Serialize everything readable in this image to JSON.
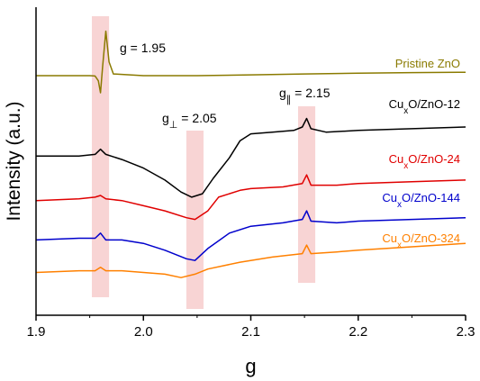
{
  "chart_data": {
    "type": "line",
    "xlabel": "g",
    "ylabel": "Intensity (a.u.)",
    "xlim": [
      1.9,
      2.3
    ],
    "x_ticks": [
      "1.9",
      "2.0",
      "2.1",
      "2.2",
      "2.3"
    ],
    "y_ticks_shown": false,
    "legend": "none",
    "highlight_bands": [
      {
        "label": "g = 1.95",
        "center": 1.96,
        "half_width": 0.008
      },
      {
        "label": "g⊥ = 2.05",
        "center": 2.048,
        "half_width": 0.008
      },
      {
        "label": "g∥ = 2.15",
        "center": 2.152,
        "half_width": 0.008
      }
    ],
    "annotations": {
      "g195": "g = 1.95",
      "g_perp_prefix": "g",
      "g_perp_sub": "⊥",
      "g_perp_value": " = 2.05",
      "g_par_prefix": "g",
      "g_par_sub": "∥",
      "g_par_value": " = 2.15"
    },
    "band_color": "#f5c6c6",
    "series": [
      {
        "name": "Pristine ZnO",
        "label_parts": [
          "Pristine ZnO"
        ],
        "color": "#8a7a00",
        "points": [
          [
            1.9,
            1.0
          ],
          [
            1.95,
            1.0
          ],
          [
            1.955,
            0.98
          ],
          [
            1.958,
            0.7
          ],
          [
            1.96,
            0.0
          ],
          [
            1.962,
            1.5
          ],
          [
            1.965,
            3.6
          ],
          [
            1.968,
            1.8
          ],
          [
            1.972,
            1.1
          ],
          [
            2.0,
            1.0
          ],
          [
            2.05,
            1.0
          ],
          [
            2.1,
            1.05
          ],
          [
            2.15,
            1.1
          ],
          [
            2.2,
            1.15
          ],
          [
            2.25,
            1.18
          ],
          [
            2.3,
            1.2
          ]
        ]
      },
      {
        "name": "CuxO/ZnO-12",
        "label_parts": [
          "Cu",
          "x",
          "O/ZnO-12"
        ],
        "color": "#000000",
        "points": [
          [
            1.9,
            -3.7
          ],
          [
            1.94,
            -3.7
          ],
          [
            1.955,
            -3.6
          ],
          [
            1.96,
            -3.3
          ],
          [
            1.965,
            -3.6
          ],
          [
            1.98,
            -3.9
          ],
          [
            2.0,
            -4.4
          ],
          [
            2.02,
            -5.1
          ],
          [
            2.035,
            -5.8
          ],
          [
            2.045,
            -6.1
          ],
          [
            2.055,
            -5.9
          ],
          [
            2.065,
            -5.0
          ],
          [
            2.08,
            -3.8
          ],
          [
            2.09,
            -2.8
          ],
          [
            2.1,
            -2.4
          ],
          [
            2.12,
            -2.3
          ],
          [
            2.14,
            -2.2
          ],
          [
            2.148,
            -2.0
          ],
          [
            2.152,
            -1.5
          ],
          [
            2.156,
            -2.1
          ],
          [
            2.17,
            -2.3
          ],
          [
            2.2,
            -2.2
          ],
          [
            2.25,
            -2.1
          ],
          [
            2.3,
            -2.0
          ]
        ]
      },
      {
        "name": "CuxO/ZnO-24",
        "label_parts": [
          "Cu",
          "x",
          "O/ZnO-24"
        ],
        "color": "#e00000",
        "points": [
          [
            1.9,
            -6.3
          ],
          [
            1.94,
            -6.2
          ],
          [
            1.955,
            -6.1
          ],
          [
            1.96,
            -6.0
          ],
          [
            1.965,
            -6.2
          ],
          [
            1.98,
            -6.3
          ],
          [
            2.0,
            -6.6
          ],
          [
            2.02,
            -6.9
          ],
          [
            2.04,
            -7.3
          ],
          [
            2.048,
            -7.4
          ],
          [
            2.06,
            -6.9
          ],
          [
            2.07,
            -6.1
          ],
          [
            2.09,
            -5.7
          ],
          [
            2.1,
            -5.6
          ],
          [
            2.13,
            -5.5
          ],
          [
            2.148,
            -5.3
          ],
          [
            2.152,
            -4.8
          ],
          [
            2.156,
            -5.4
          ],
          [
            2.18,
            -5.4
          ],
          [
            2.2,
            -5.3
          ],
          [
            2.25,
            -5.2
          ],
          [
            2.3,
            -5.1
          ]
        ]
      },
      {
        "name": "CuxO/ZnO-144",
        "label_parts": [
          "Cu",
          "x",
          "O/ZnO-144"
        ],
        "color": "#0000cc",
        "points": [
          [
            1.9,
            -8.6
          ],
          [
            1.94,
            -8.5
          ],
          [
            1.955,
            -8.5
          ],
          [
            1.96,
            -8.2
          ],
          [
            1.965,
            -8.6
          ],
          [
            1.98,
            -8.6
          ],
          [
            2.0,
            -8.8
          ],
          [
            2.02,
            -9.2
          ],
          [
            2.04,
            -9.7
          ],
          [
            2.048,
            -9.8
          ],
          [
            2.06,
            -9.1
          ],
          [
            2.08,
            -8.2
          ],
          [
            2.1,
            -7.8
          ],
          [
            2.13,
            -7.6
          ],
          [
            2.148,
            -7.4
          ],
          [
            2.152,
            -6.9
          ],
          [
            2.156,
            -7.5
          ],
          [
            2.18,
            -7.6
          ],
          [
            2.2,
            -7.5
          ],
          [
            2.25,
            -7.4
          ],
          [
            2.3,
            -7.3
          ]
        ]
      },
      {
        "name": "CuxO/ZnO-324",
        "label_parts": [
          "Cu",
          "x",
          "O/ZnO-324"
        ],
        "color": "#ff8000",
        "points": [
          [
            1.9,
            -10.5
          ],
          [
            1.94,
            -10.4
          ],
          [
            1.955,
            -10.4
          ],
          [
            1.96,
            -10.2
          ],
          [
            1.965,
            -10.4
          ],
          [
            1.98,
            -10.4
          ],
          [
            2.0,
            -10.5
          ],
          [
            2.02,
            -10.6
          ],
          [
            2.035,
            -10.8
          ],
          [
            2.048,
            -10.6
          ],
          [
            2.06,
            -10.3
          ],
          [
            2.09,
            -9.9
          ],
          [
            2.12,
            -9.6
          ],
          [
            2.148,
            -9.4
          ],
          [
            2.152,
            -8.9
          ],
          [
            2.156,
            -9.4
          ],
          [
            2.18,
            -9.3
          ],
          [
            2.2,
            -9.2
          ],
          [
            2.25,
            -9.0
          ],
          [
            2.3,
            -8.8
          ]
        ]
      }
    ]
  }
}
